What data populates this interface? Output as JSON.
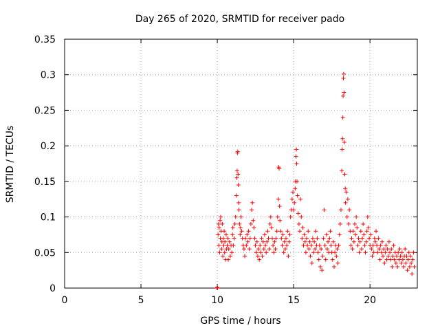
{
  "chart_data": {
    "type": "scatter",
    "title": "Day 265 of 2020, SRMTID for receiver pado",
    "xlabel": "GPS time / hours",
    "ylabel": "SRMTID / TECUs",
    "xlim": [
      0,
      23.1
    ],
    "ylim": [
      0,
      0.35
    ],
    "xticks": [
      0,
      5,
      10,
      15,
      20
    ],
    "yticks": [
      0,
      0.05,
      0.1,
      0.15,
      0.2,
      0.25,
      0.3,
      0.35
    ],
    "xtick_labels": [
      "0",
      "5",
      "10",
      "15",
      "20"
    ],
    "ytick_labels": [
      "0",
      "0.05",
      "0.1",
      "0.15",
      "0.2",
      "0.25",
      "0.3",
      "0.35"
    ],
    "grid": true,
    "marker": "+",
    "color": "#ff0000",
    "series": [
      {
        "name": "SRMTID",
        "points": [
          [
            9.98,
            0.0
          ],
          [
            10.0,
            0.001
          ],
          [
            10.02,
            0.0
          ],
          [
            10.05,
            0.075
          ],
          [
            10.08,
            0.09
          ],
          [
            10.1,
            0.06
          ],
          [
            10.12,
            0.085
          ],
          [
            10.15,
            0.05
          ],
          [
            10.18,
            0.095
          ],
          [
            10.2,
            0.07
          ],
          [
            10.22,
            0.1
          ],
          [
            10.25,
            0.08
          ],
          [
            10.28,
            0.055
          ],
          [
            10.3,
            0.065
          ],
          [
            10.33,
            0.09
          ],
          [
            10.36,
            0.045
          ],
          [
            10.4,
            0.07
          ],
          [
            10.42,
            0.06
          ],
          [
            10.45,
            0.08
          ],
          [
            10.48,
            0.05
          ],
          [
            10.5,
            0.065
          ],
          [
            10.55,
            0.04
          ],
          [
            10.58,
            0.075
          ],
          [
            10.6,
            0.055
          ],
          [
            10.65,
            0.06
          ],
          [
            10.7,
            0.07
          ],
          [
            10.72,
            0.04
          ],
          [
            10.75,
            0.055
          ],
          [
            10.8,
            0.065
          ],
          [
            10.85,
            0.045
          ],
          [
            10.9,
            0.06
          ],
          [
            10.95,
            0.05
          ],
          [
            11.0,
            0.075
          ],
          [
            11.02,
            0.085
          ],
          [
            11.05,
            0.06
          ],
          [
            11.1,
            0.07
          ],
          [
            11.15,
            0.09
          ],
          [
            11.2,
            0.1
          ],
          [
            11.25,
            0.13
          ],
          [
            11.28,
            0.155
          ],
          [
            11.3,
            0.165
          ],
          [
            11.32,
            0.19
          ],
          [
            11.34,
            0.192
          ],
          [
            11.36,
            0.16
          ],
          [
            11.38,
            0.145
          ],
          [
            11.4,
            0.12
          ],
          [
            11.42,
            0.11
          ],
          [
            11.45,
            0.09
          ],
          [
            11.5,
            0.075
          ],
          [
            11.52,
            0.085
          ],
          [
            11.55,
            0.1
          ],
          [
            11.6,
            0.08
          ],
          [
            11.65,
            0.07
          ],
          [
            11.7,
            0.06
          ],
          [
            11.75,
            0.055
          ],
          [
            11.8,
            0.045
          ],
          [
            11.85,
            0.07
          ],
          [
            11.9,
            0.06
          ],
          [
            11.95,
            0.075
          ],
          [
            12.0,
            0.065
          ],
          [
            12.05,
            0.08
          ],
          [
            12.1,
            0.055
          ],
          [
            12.15,
            0.07
          ],
          [
            12.2,
            0.09
          ],
          [
            12.25,
            0.11
          ],
          [
            12.3,
            0.12
          ],
          [
            12.35,
            0.095
          ],
          [
            12.4,
            0.085
          ],
          [
            12.45,
            0.07
          ],
          [
            12.5,
            0.06
          ],
          [
            12.55,
            0.05
          ],
          [
            12.6,
            0.065
          ],
          [
            12.65,
            0.045
          ],
          [
            12.7,
            0.055
          ],
          [
            12.75,
            0.04
          ],
          [
            12.8,
            0.06
          ],
          [
            12.85,
            0.05
          ],
          [
            12.9,
            0.07
          ],
          [
            12.95,
            0.045
          ],
          [
            13.0,
            0.065
          ],
          [
            13.05,
            0.055
          ],
          [
            13.1,
            0.075
          ],
          [
            13.15,
            0.06
          ],
          [
            13.2,
            0.05
          ],
          [
            13.25,
            0.065
          ],
          [
            13.3,
            0.08
          ],
          [
            13.35,
            0.07
          ],
          [
            13.4,
            0.055
          ],
          [
            13.45,
            0.09
          ],
          [
            13.5,
            0.1
          ],
          [
            13.55,
            0.085
          ],
          [
            13.6,
            0.07
          ],
          [
            13.65,
            0.06
          ],
          [
            13.7,
            0.05
          ],
          [
            13.75,
            0.065
          ],
          [
            13.8,
            0.055
          ],
          [
            13.85,
            0.07
          ],
          [
            13.9,
            0.08
          ],
          [
            13.95,
            0.1
          ],
          [
            14.0,
            0.125
          ],
          [
            14.02,
            0.17
          ],
          [
            14.05,
            0.168
          ],
          [
            14.08,
            0.115
          ],
          [
            14.1,
            0.095
          ],
          [
            14.15,
            0.08
          ],
          [
            14.2,
            0.07
          ],
          [
            14.25,
            0.06
          ],
          [
            14.3,
            0.075
          ],
          [
            14.35,
            0.05
          ],
          [
            14.4,
            0.065
          ],
          [
            14.45,
            0.055
          ],
          [
            14.5,
            0.07
          ],
          [
            14.55,
            0.06
          ],
          [
            14.6,
            0.08
          ],
          [
            14.65,
            0.045
          ],
          [
            14.7,
            0.065
          ],
          [
            14.75,
            0.075
          ],
          [
            14.8,
            0.1
          ],
          [
            14.85,
            0.11
          ],
          [
            14.9,
            0.125
          ],
          [
            14.95,
            0.135
          ],
          [
            15.0,
            0.11
          ],
          [
            15.05,
            0.12
          ],
          [
            15.1,
            0.14
          ],
          [
            15.12,
            0.15
          ],
          [
            15.15,
            0.185
          ],
          [
            15.18,
            0.195
          ],
          [
            15.2,
            0.175
          ],
          [
            15.22,
            0.15
          ],
          [
            15.25,
            0.13
          ],
          [
            15.3,
            0.105
          ],
          [
            15.35,
            0.09
          ],
          [
            15.4,
            0.08
          ],
          [
            15.45,
            0.125
          ],
          [
            15.5,
            0.1
          ],
          [
            15.55,
            0.07
          ],
          [
            15.6,
            0.085
          ],
          [
            15.65,
            0.06
          ],
          [
            15.7,
            0.075
          ],
          [
            15.75,
            0.065
          ],
          [
            15.8,
            0.05
          ],
          [
            15.85,
            0.07
          ],
          [
            15.9,
            0.06
          ],
          [
            15.95,
            0.08
          ],
          [
            16.0,
            0.055
          ],
          [
            16.05,
            0.065
          ],
          [
            16.1,
            0.045
          ],
          [
            16.15,
            0.06
          ],
          [
            16.2,
            0.035
          ],
          [
            16.25,
            0.07
          ],
          [
            16.3,
            0.05
          ],
          [
            16.35,
            0.065
          ],
          [
            16.4,
            0.055
          ],
          [
            16.45,
            0.08
          ],
          [
            16.5,
            0.06
          ],
          [
            16.55,
            0.07
          ],
          [
            16.6,
            0.05
          ],
          [
            16.65,
            0.04
          ],
          [
            16.7,
            0.06
          ],
          [
            16.75,
            0.03
          ],
          [
            16.8,
            0.055
          ],
          [
            16.85,
            0.025
          ],
          [
            16.9,
            0.045
          ],
          [
            16.95,
            0.07
          ],
          [
            17.0,
            0.11
          ],
          [
            17.05,
            0.06
          ],
          [
            17.1,
            0.04
          ],
          [
            17.15,
            0.075
          ],
          [
            17.2,
            0.055
          ],
          [
            17.25,
            0.065
          ],
          [
            17.3,
            0.05
          ],
          [
            17.35,
            0.07
          ],
          [
            17.4,
            0.08
          ],
          [
            17.45,
            0.06
          ],
          [
            17.5,
            0.05
          ],
          [
            17.55,
            0.04
          ],
          [
            17.6,
            0.065
          ],
          [
            17.65,
            0.03
          ],
          [
            17.7,
            0.05
          ],
          [
            17.75,
            0.06
          ],
          [
            17.8,
            0.045
          ],
          [
            17.85,
            0.055
          ],
          [
            17.9,
            0.035
          ],
          [
            17.95,
            0.06
          ],
          [
            18.0,
            0.075
          ],
          [
            18.05,
            0.09
          ],
          [
            18.1,
            0.11
          ],
          [
            18.15,
            0.165
          ],
          [
            18.18,
            0.195
          ],
          [
            18.2,
            0.21
          ],
          [
            18.22,
            0.24
          ],
          [
            18.24,
            0.27
          ],
          [
            18.26,
            0.295
          ],
          [
            18.28,
            0.301
          ],
          [
            18.3,
            0.275
          ],
          [
            18.32,
            0.205
          ],
          [
            18.35,
            0.16
          ],
          [
            18.38,
            0.14
          ],
          [
            18.4,
            0.12
          ],
          [
            18.45,
            0.135
          ],
          [
            18.5,
            0.1
          ],
          [
            18.55,
            0.125
          ],
          [
            18.6,
            0.09
          ],
          [
            18.65,
            0.11
          ],
          [
            18.7,
            0.08
          ],
          [
            18.75,
            0.06
          ],
          [
            18.8,
            0.07
          ],
          [
            18.85,
            0.055
          ],
          [
            18.9,
            0.08
          ],
          [
            18.95,
            0.065
          ],
          [
            19.0,
            0.09
          ],
          [
            19.05,
            0.075
          ],
          [
            19.1,
            0.1
          ],
          [
            19.15,
            0.085
          ],
          [
            19.2,
            0.06
          ],
          [
            19.25,
            0.07
          ],
          [
            19.3,
            0.05
          ],
          [
            19.35,
            0.065
          ],
          [
            19.4,
            0.08
          ],
          [
            19.45,
            0.055
          ],
          [
            19.5,
            0.07
          ],
          [
            19.55,
            0.09
          ],
          [
            19.6,
            0.075
          ],
          [
            19.65,
            0.06
          ],
          [
            19.7,
            0.05
          ],
          [
            19.75,
            0.065
          ],
          [
            19.8,
            0.08
          ],
          [
            19.85,
            0.1
          ],
          [
            19.9,
            0.085
          ],
          [
            19.95,
            0.07
          ],
          [
            20.0,
            0.06
          ],
          [
            20.05,
            0.075
          ],
          [
            20.1,
            0.055
          ],
          [
            20.15,
            0.045
          ],
          [
            20.2,
            0.06
          ],
          [
            20.25,
            0.05
          ],
          [
            20.3,
            0.07
          ],
          [
            20.35,
            0.065
          ],
          [
            20.4,
            0.08
          ],
          [
            20.45,
            0.06
          ],
          [
            20.5,
            0.05
          ],
          [
            20.55,
            0.07
          ],
          [
            20.6,
            0.055
          ],
          [
            20.65,
            0.04
          ],
          [
            20.7,
            0.06
          ],
          [
            20.75,
            0.05
          ],
          [
            20.8,
            0.065
          ],
          [
            20.85,
            0.045
          ],
          [
            20.9,
            0.055
          ],
          [
            20.95,
            0.035
          ],
          [
            21.0,
            0.05
          ],
          [
            21.05,
            0.06
          ],
          [
            21.1,
            0.04
          ],
          [
            21.15,
            0.055
          ],
          [
            21.2,
            0.045
          ],
          [
            21.25,
            0.065
          ],
          [
            21.3,
            0.05
          ],
          [
            21.35,
            0.04
          ],
          [
            21.4,
            0.055
          ],
          [
            21.45,
            0.03
          ],
          [
            21.5,
            0.045
          ],
          [
            21.55,
            0.06
          ],
          [
            21.6,
            0.04
          ],
          [
            21.65,
            0.05
          ],
          [
            21.7,
            0.035
          ],
          [
            21.75,
            0.045
          ],
          [
            21.8,
            0.03
          ],
          [
            21.85,
            0.05
          ],
          [
            21.9,
            0.04
          ],
          [
            21.95,
            0.055
          ],
          [
            22.0,
            0.045
          ],
          [
            22.05,
            0.035
          ],
          [
            22.1,
            0.05
          ],
          [
            22.15,
            0.04
          ],
          [
            22.2,
            0.03
          ],
          [
            22.25,
            0.045
          ],
          [
            22.3,
            0.055
          ],
          [
            22.35,
            0.035
          ],
          [
            22.4,
            0.045
          ],
          [
            22.45,
            0.025
          ],
          [
            22.5,
            0.04
          ],
          [
            22.55,
            0.05
          ],
          [
            22.6,
            0.03
          ],
          [
            22.65,
            0.045
          ],
          [
            22.7,
            0.035
          ],
          [
            22.75,
            0.02
          ],
          [
            22.8,
            0.04
          ],
          [
            22.85,
            0.05
          ],
          [
            22.9,
            0.03
          ]
        ]
      }
    ]
  }
}
